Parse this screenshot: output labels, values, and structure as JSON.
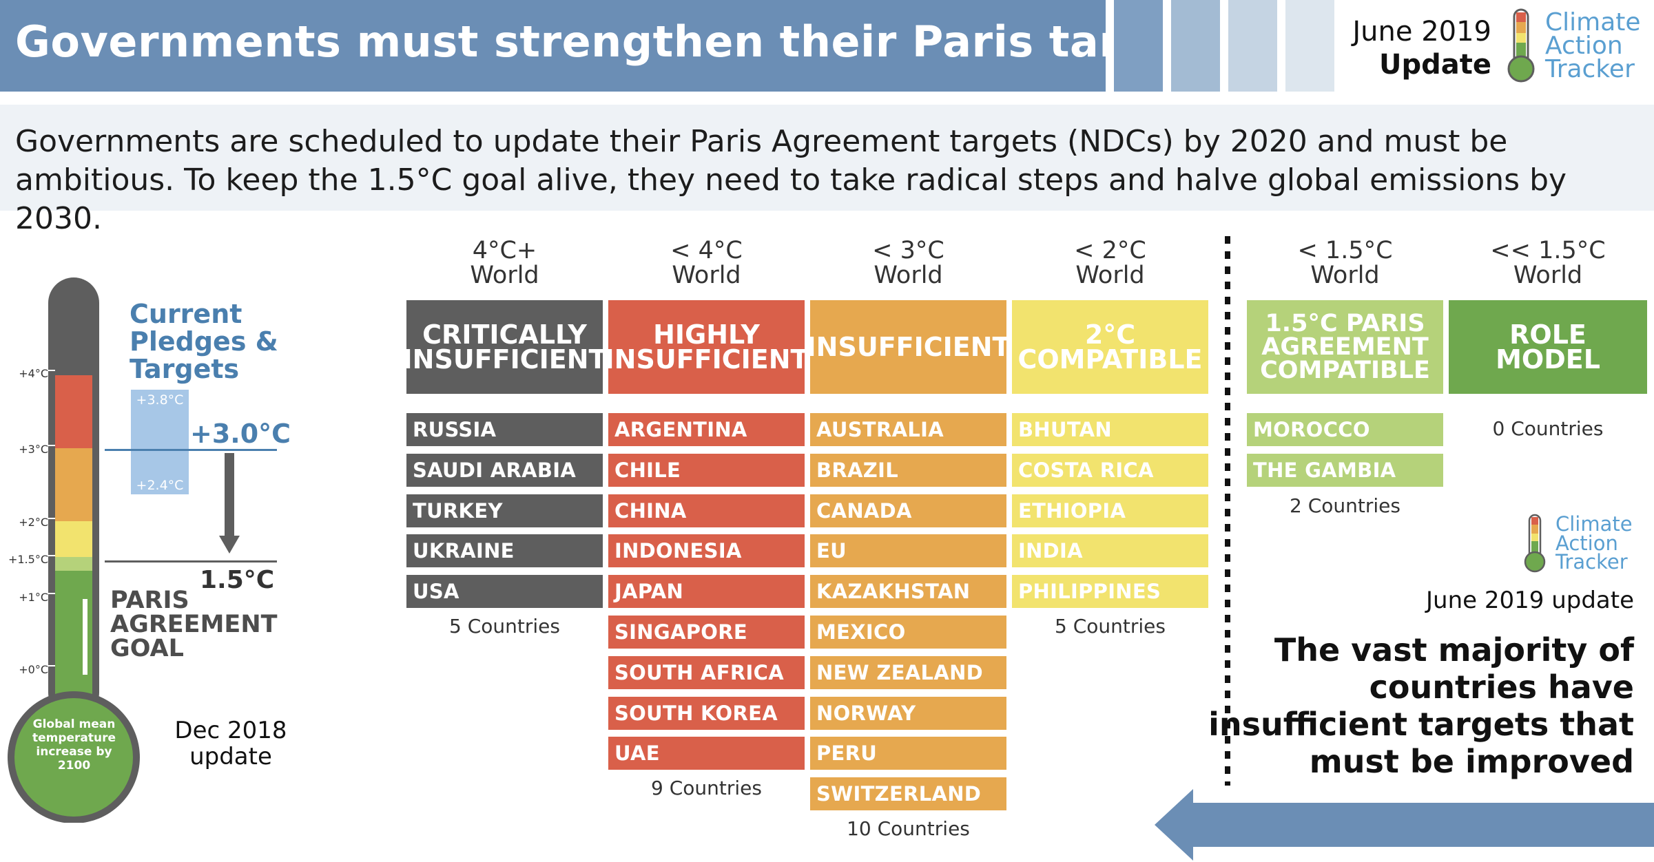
{
  "header": {
    "title": "Governments must strengthen their Paris targets",
    "date_line1": "June 2019",
    "date_line2": "Update",
    "logo": [
      "Climate",
      "Action",
      "Tracker"
    ]
  },
  "subtitle": "Governments are scheduled to update their Paris Agreement targets (NDCs) by 2020 and must be ambitious. To keep the 1.5°C goal alive, they need to take radical steps and halve global emissions by 2030.",
  "thermometer": {
    "ticks": [
      "+4°C",
      "+3°C",
      "+2°C",
      "+1.5°C",
      "+1°C",
      "+0°C"
    ],
    "bulb_label": "Global mean temperature increase by 2100",
    "pledges_title": "Current Pledges & Targets",
    "range_high": "+3.8°C",
    "range_low": "+2.4°C",
    "current_value": "+3.0°C",
    "goal_value": "1.5°C",
    "goal_label": "PARIS AGREEMENT GOAL",
    "update_label": "Dec 2018 update",
    "current_level_celsius": 3.0,
    "range_celsius": [
      2.4,
      3.8
    ],
    "colors": {
      "grey": "#5e5e5e",
      "red": "#d9604a",
      "orange": "#e6a84f",
      "yellow": "#f2e36e",
      "lightgreen": "#b5d27a",
      "green": "#6fa84e",
      "blue_range": "#a7c7e7",
      "blue_text": "#4a7fae"
    }
  },
  "categories": [
    {
      "world": [
        "4°C+",
        "World"
      ],
      "name": "CRITICALLY INSUFFICIENT",
      "color": "#5e5e5e",
      "countries": [
        "RUSSIA",
        "SAUDI ARABIA",
        "TURKEY",
        "UKRAINE",
        "USA"
      ],
      "count": "5 Countries"
    },
    {
      "world": [
        "< 4°C",
        "World"
      ],
      "name": "HIGHLY INSUFFICIENT",
      "color": "#d9604a",
      "countries": [
        "ARGENTINA",
        "CHILE",
        "CHINA",
        "INDONESIA",
        "JAPAN",
        "SINGAPORE",
        "SOUTH AFRICA",
        "SOUTH KOREA",
        "UAE"
      ],
      "count": "9 Countries"
    },
    {
      "world": [
        "< 3°C",
        "World"
      ],
      "name": "INSUFFICIENT",
      "color": "#e6a84f",
      "countries": [
        "AUSTRALIA",
        "BRAZIL",
        "CANADA",
        "EU",
        "KAZAKHSTAN",
        "MEXICO",
        "NEW ZEALAND",
        "NORWAY",
        "PERU",
        "SWITZERLAND"
      ],
      "count": "10 Countries"
    },
    {
      "world": [
        "< 2°C",
        "World"
      ],
      "name": "2°C COMPATIBLE",
      "color": "#f2e36e",
      "text_color": "#ffffff",
      "countries": [
        "BHUTAN",
        "COSTA RICA",
        "ETHIOPIA",
        "INDIA",
        "PHILIPPINES"
      ],
      "count": "5 Countries"
    },
    {
      "world": [
        "< 1.5°C",
        "World"
      ],
      "name": "1.5°C PARIS AGREEMENT COMPATIBLE",
      "color": "#b5d27a",
      "countries": [
        "MOROCCO",
        "THE GAMBIA"
      ],
      "count": "2 Countries"
    },
    {
      "world": [
        "<< 1.5°C",
        "World"
      ],
      "name": "ROLE MODEL",
      "color": "#6fa84e",
      "countries": [],
      "count": "0 Countries"
    }
  ],
  "right_panel": {
    "logo": [
      "Climate",
      "Action",
      "Tracker"
    ],
    "update": "June 2019 update",
    "message": "The vast majority of countries have insufficient targets that must be improved"
  }
}
